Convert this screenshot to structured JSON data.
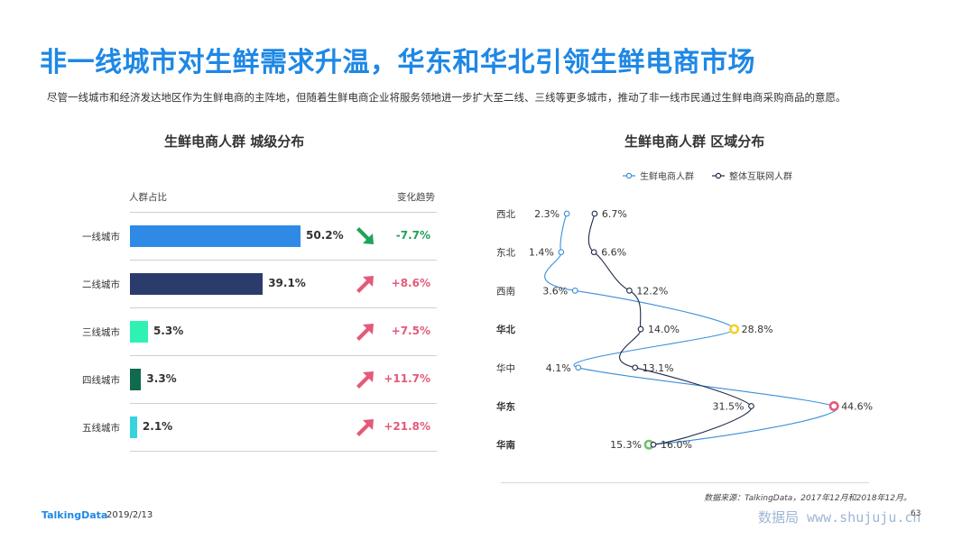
{
  "page": {
    "title": "非一线城市对生鲜需求升温，华东和华北引领生鲜电商市场",
    "description": "尽管一线城市和经济发达地区作为生鲜电商的主阵地，但随着生鲜电商企业将服务领地进一步扩大至二线、三线等更多城市，推动了非一线市民通过生鲜电商采购商品的意愿。",
    "footer_logo": "TalkingData",
    "footer_date": "2019/2/13",
    "source": "数据来源：TalkingData，2017年12月和2018年12月。",
    "page_number": "63",
    "watermark": "数据局 www.shujuju.cn"
  },
  "chart_data": [
    {
      "type": "bar",
      "title": "生鲜电商人群  城级分布",
      "col_header_left": "人群占比",
      "col_header_right": "变化趋势",
      "categories": [
        "一线城市",
        "二线城市",
        "三线城市",
        "四线城市",
        "五线城市"
      ],
      "values": [
        50.2,
        39.1,
        5.3,
        3.3,
        2.1
      ],
      "value_labels": [
        "50.2%",
        "39.1%",
        "5.3%",
        "3.3%",
        "2.1%"
      ],
      "bar_colors": [
        "#2f8ae5",
        "#2b3b6b",
        "#2ef2b4",
        "#0f6a4f",
        "#36d4dc"
      ],
      "changes": [
        "-7.7%",
        "+8.6%",
        "+7.5%",
        "+11.7%",
        "+21.8%"
      ],
      "change_direction": [
        "down",
        "up",
        "up",
        "up",
        "up"
      ],
      "colors": {
        "up": "#e45a78",
        "down": "#1fa35a"
      }
    },
    {
      "type": "line",
      "title": "生鲜电商人群  区域分布",
      "categories": [
        "西北",
        "东北",
        "西南",
        "华北",
        "华中",
        "华东",
        "华南"
      ],
      "bold_categories": [
        "华北",
        "华东",
        "华南"
      ],
      "series": [
        {
          "name": "生鲜电商人群",
          "values": [
            2.3,
            1.4,
            3.6,
            28.8,
            4.1,
            44.6,
            15.3
          ],
          "labels": [
            "2.3%",
            "1.4%",
            "3.6%",
            "28.8%",
            "4.1%",
            "44.6%",
            "15.3%"
          ],
          "color": "#3a8fd8",
          "highlight": {
            "华北": "#f2d22e",
            "华东": "#e45a78",
            "华南": "#6cc56c"
          }
        },
        {
          "name": "整体互联网人群",
          "values": [
            6.7,
            6.6,
            12.2,
            14.0,
            13.1,
            31.5,
            16.0
          ],
          "labels": [
            "6.7%",
            "6.6%",
            "12.2%",
            "14.0%",
            "13.1%",
            "31.5%",
            "16.0%"
          ],
          "color": "#1f2a4a"
        }
      ]
    }
  ]
}
